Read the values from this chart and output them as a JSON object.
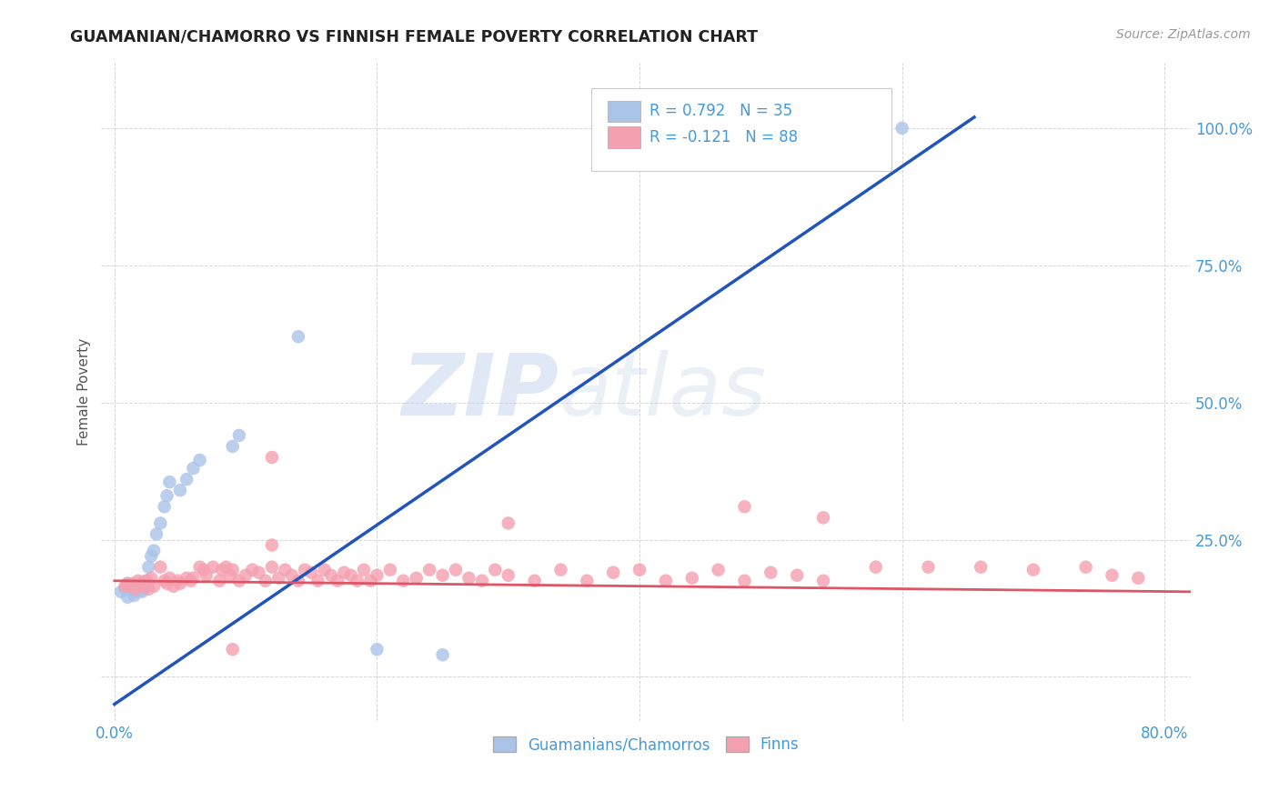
{
  "title": "GUAMANIAN/CHAMORRO VS FINNISH FEMALE POVERTY CORRELATION CHART",
  "source": "Source: ZipAtlas.com",
  "ylabel": "Female Poverty",
  "group1_color": "#aac4e8",
  "group2_color": "#f4a0b0",
  "line1_color": "#2255bb",
  "line2_color": "#dd5566",
  "watermark_zip": "ZIP",
  "watermark_atlas": "atlas",
  "group1_label": "Guamanians/Chamorros",
  "group2_label": "Finns",
  "legend_line1": "R = 0.792   N = 35",
  "legend_line2": "R = -0.121   N = 88",
  "tick_color": "#4499dd",
  "title_color": "#222222",
  "ylabel_color": "#555555",
  "source_color": "#999999",
  "grid_color": "#cccccc",
  "bg_color": "#ffffff",
  "xlim": [
    -0.01,
    0.82
  ],
  "ylim": [
    -0.08,
    1.12
  ],
  "xticks": [
    0.0,
    0.2,
    0.4,
    0.6,
    0.8
  ],
  "xticklabels": [
    "0.0%",
    "",
    "",
    "",
    "80.0%"
  ],
  "yticks": [
    0.0,
    0.25,
    0.5,
    0.75,
    1.0
  ],
  "yticklabels": [
    "",
    "25.0%",
    "50.0%",
    "75.0%",
    "100.0%"
  ],
  "blue_line_x": [
    0.0,
    0.655
  ],
  "blue_line_y": [
    -0.05,
    1.02
  ],
  "pink_line_x": [
    0.0,
    0.82
  ],
  "pink_line_y": [
    0.175,
    0.155
  ],
  "blue_x": [
    0.005,
    0.008,
    0.01,
    0.01,
    0.012,
    0.013,
    0.014,
    0.015,
    0.016,
    0.017,
    0.018,
    0.019,
    0.02,
    0.021,
    0.022,
    0.023,
    0.025,
    0.026,
    0.028,
    0.03,
    0.032,
    0.035,
    0.038,
    0.04,
    0.042,
    0.05,
    0.055,
    0.06,
    0.065,
    0.09,
    0.095,
    0.14,
    0.2,
    0.25,
    0.6
  ],
  "blue_y": [
    0.155,
    0.16,
    0.17,
    0.145,
    0.165,
    0.158,
    0.155,
    0.148,
    0.16,
    0.155,
    0.168,
    0.162,
    0.17,
    0.155,
    0.16,
    0.165,
    0.175,
    0.2,
    0.22,
    0.23,
    0.26,
    0.28,
    0.31,
    0.33,
    0.355,
    0.34,
    0.36,
    0.38,
    0.395,
    0.42,
    0.44,
    0.62,
    0.05,
    0.04,
    1.0
  ],
  "pink_x": [
    0.008,
    0.01,
    0.012,
    0.014,
    0.016,
    0.018,
    0.02,
    0.022,
    0.024,
    0.026,
    0.028,
    0.03,
    0.035,
    0.038,
    0.04,
    0.042,
    0.045,
    0.048,
    0.05,
    0.055,
    0.058,
    0.06,
    0.065,
    0.068,
    0.07,
    0.075,
    0.08,
    0.082,
    0.085,
    0.088,
    0.09,
    0.095,
    0.1,
    0.105,
    0.11,
    0.115,
    0.12,
    0.125,
    0.13,
    0.135,
    0.14,
    0.145,
    0.15,
    0.155,
    0.16,
    0.165,
    0.17,
    0.175,
    0.18,
    0.185,
    0.19,
    0.195,
    0.2,
    0.21,
    0.22,
    0.23,
    0.24,
    0.25,
    0.26,
    0.27,
    0.28,
    0.29,
    0.3,
    0.32,
    0.34,
    0.36,
    0.38,
    0.4,
    0.42,
    0.44,
    0.46,
    0.48,
    0.5,
    0.52,
    0.54,
    0.58,
    0.62,
    0.66,
    0.7,
    0.74,
    0.76,
    0.78,
    0.12,
    0.3,
    0.48,
    0.54,
    0.12,
    0.09
  ],
  "pink_y": [
    0.165,
    0.17,
    0.165,
    0.17,
    0.16,
    0.175,
    0.165,
    0.17,
    0.175,
    0.16,
    0.18,
    0.165,
    0.2,
    0.175,
    0.17,
    0.18,
    0.165,
    0.175,
    0.17,
    0.18,
    0.175,
    0.18,
    0.2,
    0.195,
    0.185,
    0.2,
    0.175,
    0.195,
    0.2,
    0.185,
    0.195,
    0.175,
    0.185,
    0.195,
    0.19,
    0.175,
    0.2,
    0.18,
    0.195,
    0.185,
    0.175,
    0.195,
    0.19,
    0.175,
    0.195,
    0.185,
    0.175,
    0.19,
    0.185,
    0.175,
    0.195,
    0.175,
    0.185,
    0.195,
    0.175,
    0.18,
    0.195,
    0.185,
    0.195,
    0.18,
    0.175,
    0.195,
    0.185,
    0.175,
    0.195,
    0.175,
    0.19,
    0.195,
    0.175,
    0.18,
    0.195,
    0.175,
    0.19,
    0.185,
    0.175,
    0.2,
    0.2,
    0.2,
    0.195,
    0.2,
    0.185,
    0.18,
    0.4,
    0.28,
    0.31,
    0.29,
    0.24,
    0.05
  ]
}
